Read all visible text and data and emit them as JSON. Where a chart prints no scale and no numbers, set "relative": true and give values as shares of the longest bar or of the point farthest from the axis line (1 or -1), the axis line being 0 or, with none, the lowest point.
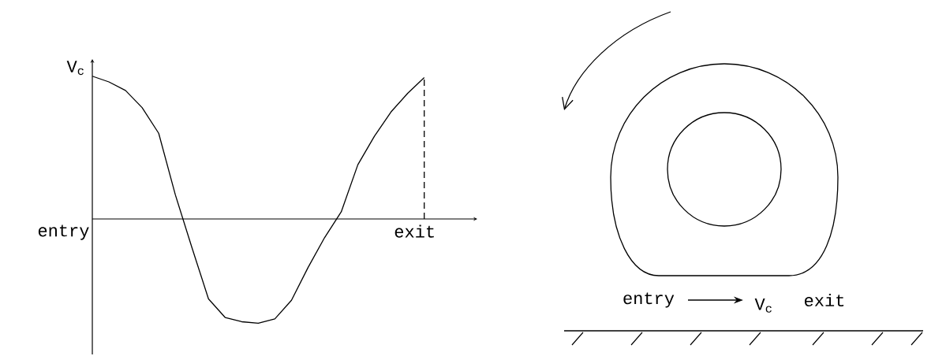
{
  "chart_data": [
    {
      "type": "line",
      "relative": true,
      "ylabel": "V$_{c}$",
      "annotations": [
        "entry",
        "exit"
      ],
      "categories": [
        null,
        null,
        null,
        null,
        null,
        null,
        null,
        null,
        null,
        null,
        null,
        null,
        null,
        null,
        null,
        null,
        null,
        null,
        null,
        null,
        null
      ],
      "series": [
        {
          "color": "#000000",
          "values": [
            1.0,
            0.96,
            0.9,
            0.78,
            0.6,
            0.17,
            -0.2,
            -0.56,
            -0.69,
            -0.72,
            -0.73,
            -0.7,
            -0.57,
            -0.34,
            -0.13,
            0.05,
            0.38,
            0.58,
            0.75,
            0.88,
            0.99
          ]
        }
      ]
    },
    {
      "type": "other",
      "annotations": [
        "entry",
        "V$_{c}$",
        "exit"
      ]
    }
  ]
}
